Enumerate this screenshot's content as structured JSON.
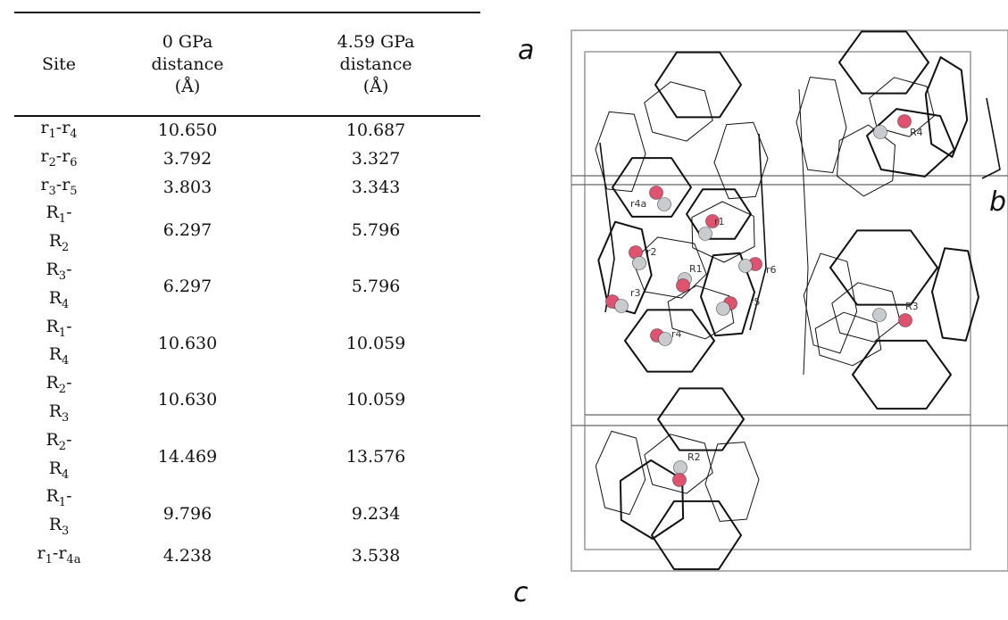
{
  "table": {
    "headers": [
      [
        "Site"
      ],
      [
        "0 GPa",
        "distance",
        "(Å)"
      ],
      [
        "4.59 GPa",
        "distance",
        "(Å)"
      ]
    ],
    "rows": [
      {
        "site": [
          [
            "r",
            "1"
          ],
          [
            "-r",
            "4"
          ]
        ],
        "p0": "10.650",
        "p1": "10.687"
      },
      {
        "site": [
          [
            "r",
            "2"
          ],
          [
            "-r",
            "6"
          ]
        ],
        "p0": "3.792",
        "p1": "3.327"
      },
      {
        "site": [
          [
            "r",
            "3"
          ],
          [
            "-r",
            "5"
          ]
        ],
        "p0": "3.803",
        "p1": "3.343"
      },
      {
        "site": [
          [
            "R",
            "1"
          ],
          [
            "-",
            ""
          ],
          [
            "R",
            "2"
          ]
        ],
        "p0": "6.297",
        "p1": "5.796"
      },
      {
        "site": [
          [
            "R",
            "3"
          ],
          [
            "-",
            ""
          ],
          [
            "R",
            "4"
          ]
        ],
        "p0": "6.297",
        "p1": "5.796"
      },
      {
        "site": [
          [
            "R",
            "1"
          ],
          [
            "-",
            ""
          ],
          [
            "R",
            "4"
          ]
        ],
        "p0": "10.630",
        "p1": "10.059"
      },
      {
        "site": [
          [
            "R",
            "2"
          ],
          [
            "-",
            ""
          ],
          [
            "R",
            "3"
          ]
        ],
        "p0": "10.630",
        "p1": "10.059"
      },
      {
        "site": [
          [
            "R",
            "2"
          ],
          [
            "-",
            ""
          ],
          [
            "R",
            "4"
          ]
        ],
        "p0": "14.469",
        "p1": "13.576"
      },
      {
        "site": [
          [
            "R",
            "1"
          ],
          [
            "-",
            ""
          ],
          [
            "R",
            "3"
          ]
        ],
        "p0": "9.796",
        "p1": "9.234"
      },
      {
        "site": [
          [
            "r",
            "1"
          ],
          [
            "-r",
            "4a"
          ]
        ],
        "p0": "4.238",
        "p1": "3.538"
      }
    ]
  },
  "figure": {
    "axis_labels": {
      "a": "a",
      "b": "b",
      "c": "c"
    },
    "site_labels": [
      "r4a",
      "r1",
      "r2",
      "R1",
      "r6",
      "r3",
      "r5",
      "r4",
      "R4",
      "R3",
      "R2"
    ],
    "colors": {
      "atom_red": "#e0526e",
      "atom_white": "#c9cccf",
      "frame": "#777777"
    }
  }
}
